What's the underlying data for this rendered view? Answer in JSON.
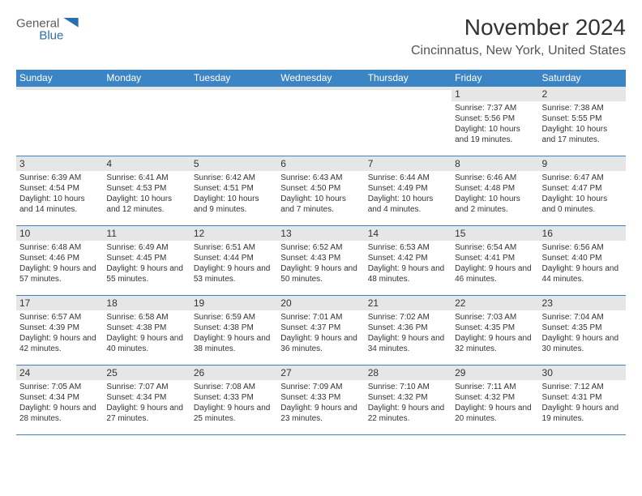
{
  "logo": {
    "text1": "General",
    "text2": "Blue"
  },
  "header": {
    "month_title": "November 2024",
    "location": "Cincinnatus, New York, United States"
  },
  "calendar": {
    "header_bg": "#3b85c4",
    "header_fg": "#ffffff",
    "row_border_color": "#3b85c4",
    "daynum_bg": "#e6e6e6",
    "daynames": [
      "Sunday",
      "Monday",
      "Tuesday",
      "Wednesday",
      "Thursday",
      "Friday",
      "Saturday"
    ],
    "weeks": [
      [
        {
          "n": "",
          "sunrise": "",
          "sunset": "",
          "daylight": ""
        },
        {
          "n": "",
          "sunrise": "",
          "sunset": "",
          "daylight": ""
        },
        {
          "n": "",
          "sunrise": "",
          "sunset": "",
          "daylight": ""
        },
        {
          "n": "",
          "sunrise": "",
          "sunset": "",
          "daylight": ""
        },
        {
          "n": "",
          "sunrise": "",
          "sunset": "",
          "daylight": ""
        },
        {
          "n": "1",
          "sunrise": "Sunrise: 7:37 AM",
          "sunset": "Sunset: 5:56 PM",
          "daylight": "Daylight: 10 hours and 19 minutes."
        },
        {
          "n": "2",
          "sunrise": "Sunrise: 7:38 AM",
          "sunset": "Sunset: 5:55 PM",
          "daylight": "Daylight: 10 hours and 17 minutes."
        }
      ],
      [
        {
          "n": "3",
          "sunrise": "Sunrise: 6:39 AM",
          "sunset": "Sunset: 4:54 PM",
          "daylight": "Daylight: 10 hours and 14 minutes."
        },
        {
          "n": "4",
          "sunrise": "Sunrise: 6:41 AM",
          "sunset": "Sunset: 4:53 PM",
          "daylight": "Daylight: 10 hours and 12 minutes."
        },
        {
          "n": "5",
          "sunrise": "Sunrise: 6:42 AM",
          "sunset": "Sunset: 4:51 PM",
          "daylight": "Daylight: 10 hours and 9 minutes."
        },
        {
          "n": "6",
          "sunrise": "Sunrise: 6:43 AM",
          "sunset": "Sunset: 4:50 PM",
          "daylight": "Daylight: 10 hours and 7 minutes."
        },
        {
          "n": "7",
          "sunrise": "Sunrise: 6:44 AM",
          "sunset": "Sunset: 4:49 PM",
          "daylight": "Daylight: 10 hours and 4 minutes."
        },
        {
          "n": "8",
          "sunrise": "Sunrise: 6:46 AM",
          "sunset": "Sunset: 4:48 PM",
          "daylight": "Daylight: 10 hours and 2 minutes."
        },
        {
          "n": "9",
          "sunrise": "Sunrise: 6:47 AM",
          "sunset": "Sunset: 4:47 PM",
          "daylight": "Daylight: 10 hours and 0 minutes."
        }
      ],
      [
        {
          "n": "10",
          "sunrise": "Sunrise: 6:48 AM",
          "sunset": "Sunset: 4:46 PM",
          "daylight": "Daylight: 9 hours and 57 minutes."
        },
        {
          "n": "11",
          "sunrise": "Sunrise: 6:49 AM",
          "sunset": "Sunset: 4:45 PM",
          "daylight": "Daylight: 9 hours and 55 minutes."
        },
        {
          "n": "12",
          "sunrise": "Sunrise: 6:51 AM",
          "sunset": "Sunset: 4:44 PM",
          "daylight": "Daylight: 9 hours and 53 minutes."
        },
        {
          "n": "13",
          "sunrise": "Sunrise: 6:52 AM",
          "sunset": "Sunset: 4:43 PM",
          "daylight": "Daylight: 9 hours and 50 minutes."
        },
        {
          "n": "14",
          "sunrise": "Sunrise: 6:53 AM",
          "sunset": "Sunset: 4:42 PM",
          "daylight": "Daylight: 9 hours and 48 minutes."
        },
        {
          "n": "15",
          "sunrise": "Sunrise: 6:54 AM",
          "sunset": "Sunset: 4:41 PM",
          "daylight": "Daylight: 9 hours and 46 minutes."
        },
        {
          "n": "16",
          "sunrise": "Sunrise: 6:56 AM",
          "sunset": "Sunset: 4:40 PM",
          "daylight": "Daylight: 9 hours and 44 minutes."
        }
      ],
      [
        {
          "n": "17",
          "sunrise": "Sunrise: 6:57 AM",
          "sunset": "Sunset: 4:39 PM",
          "daylight": "Daylight: 9 hours and 42 minutes."
        },
        {
          "n": "18",
          "sunrise": "Sunrise: 6:58 AM",
          "sunset": "Sunset: 4:38 PM",
          "daylight": "Daylight: 9 hours and 40 minutes."
        },
        {
          "n": "19",
          "sunrise": "Sunrise: 6:59 AM",
          "sunset": "Sunset: 4:38 PM",
          "daylight": "Daylight: 9 hours and 38 minutes."
        },
        {
          "n": "20",
          "sunrise": "Sunrise: 7:01 AM",
          "sunset": "Sunset: 4:37 PM",
          "daylight": "Daylight: 9 hours and 36 minutes."
        },
        {
          "n": "21",
          "sunrise": "Sunrise: 7:02 AM",
          "sunset": "Sunset: 4:36 PM",
          "daylight": "Daylight: 9 hours and 34 minutes."
        },
        {
          "n": "22",
          "sunrise": "Sunrise: 7:03 AM",
          "sunset": "Sunset: 4:35 PM",
          "daylight": "Daylight: 9 hours and 32 minutes."
        },
        {
          "n": "23",
          "sunrise": "Sunrise: 7:04 AM",
          "sunset": "Sunset: 4:35 PM",
          "daylight": "Daylight: 9 hours and 30 minutes."
        }
      ],
      [
        {
          "n": "24",
          "sunrise": "Sunrise: 7:05 AM",
          "sunset": "Sunset: 4:34 PM",
          "daylight": "Daylight: 9 hours and 28 minutes."
        },
        {
          "n": "25",
          "sunrise": "Sunrise: 7:07 AM",
          "sunset": "Sunset: 4:34 PM",
          "daylight": "Daylight: 9 hours and 27 minutes."
        },
        {
          "n": "26",
          "sunrise": "Sunrise: 7:08 AM",
          "sunset": "Sunset: 4:33 PM",
          "daylight": "Daylight: 9 hours and 25 minutes."
        },
        {
          "n": "27",
          "sunrise": "Sunrise: 7:09 AM",
          "sunset": "Sunset: 4:33 PM",
          "daylight": "Daylight: 9 hours and 23 minutes."
        },
        {
          "n": "28",
          "sunrise": "Sunrise: 7:10 AM",
          "sunset": "Sunset: 4:32 PM",
          "daylight": "Daylight: 9 hours and 22 minutes."
        },
        {
          "n": "29",
          "sunrise": "Sunrise: 7:11 AM",
          "sunset": "Sunset: 4:32 PM",
          "daylight": "Daylight: 9 hours and 20 minutes."
        },
        {
          "n": "30",
          "sunrise": "Sunrise: 7:12 AM",
          "sunset": "Sunset: 4:31 PM",
          "daylight": "Daylight: 9 hours and 19 minutes."
        }
      ]
    ]
  }
}
